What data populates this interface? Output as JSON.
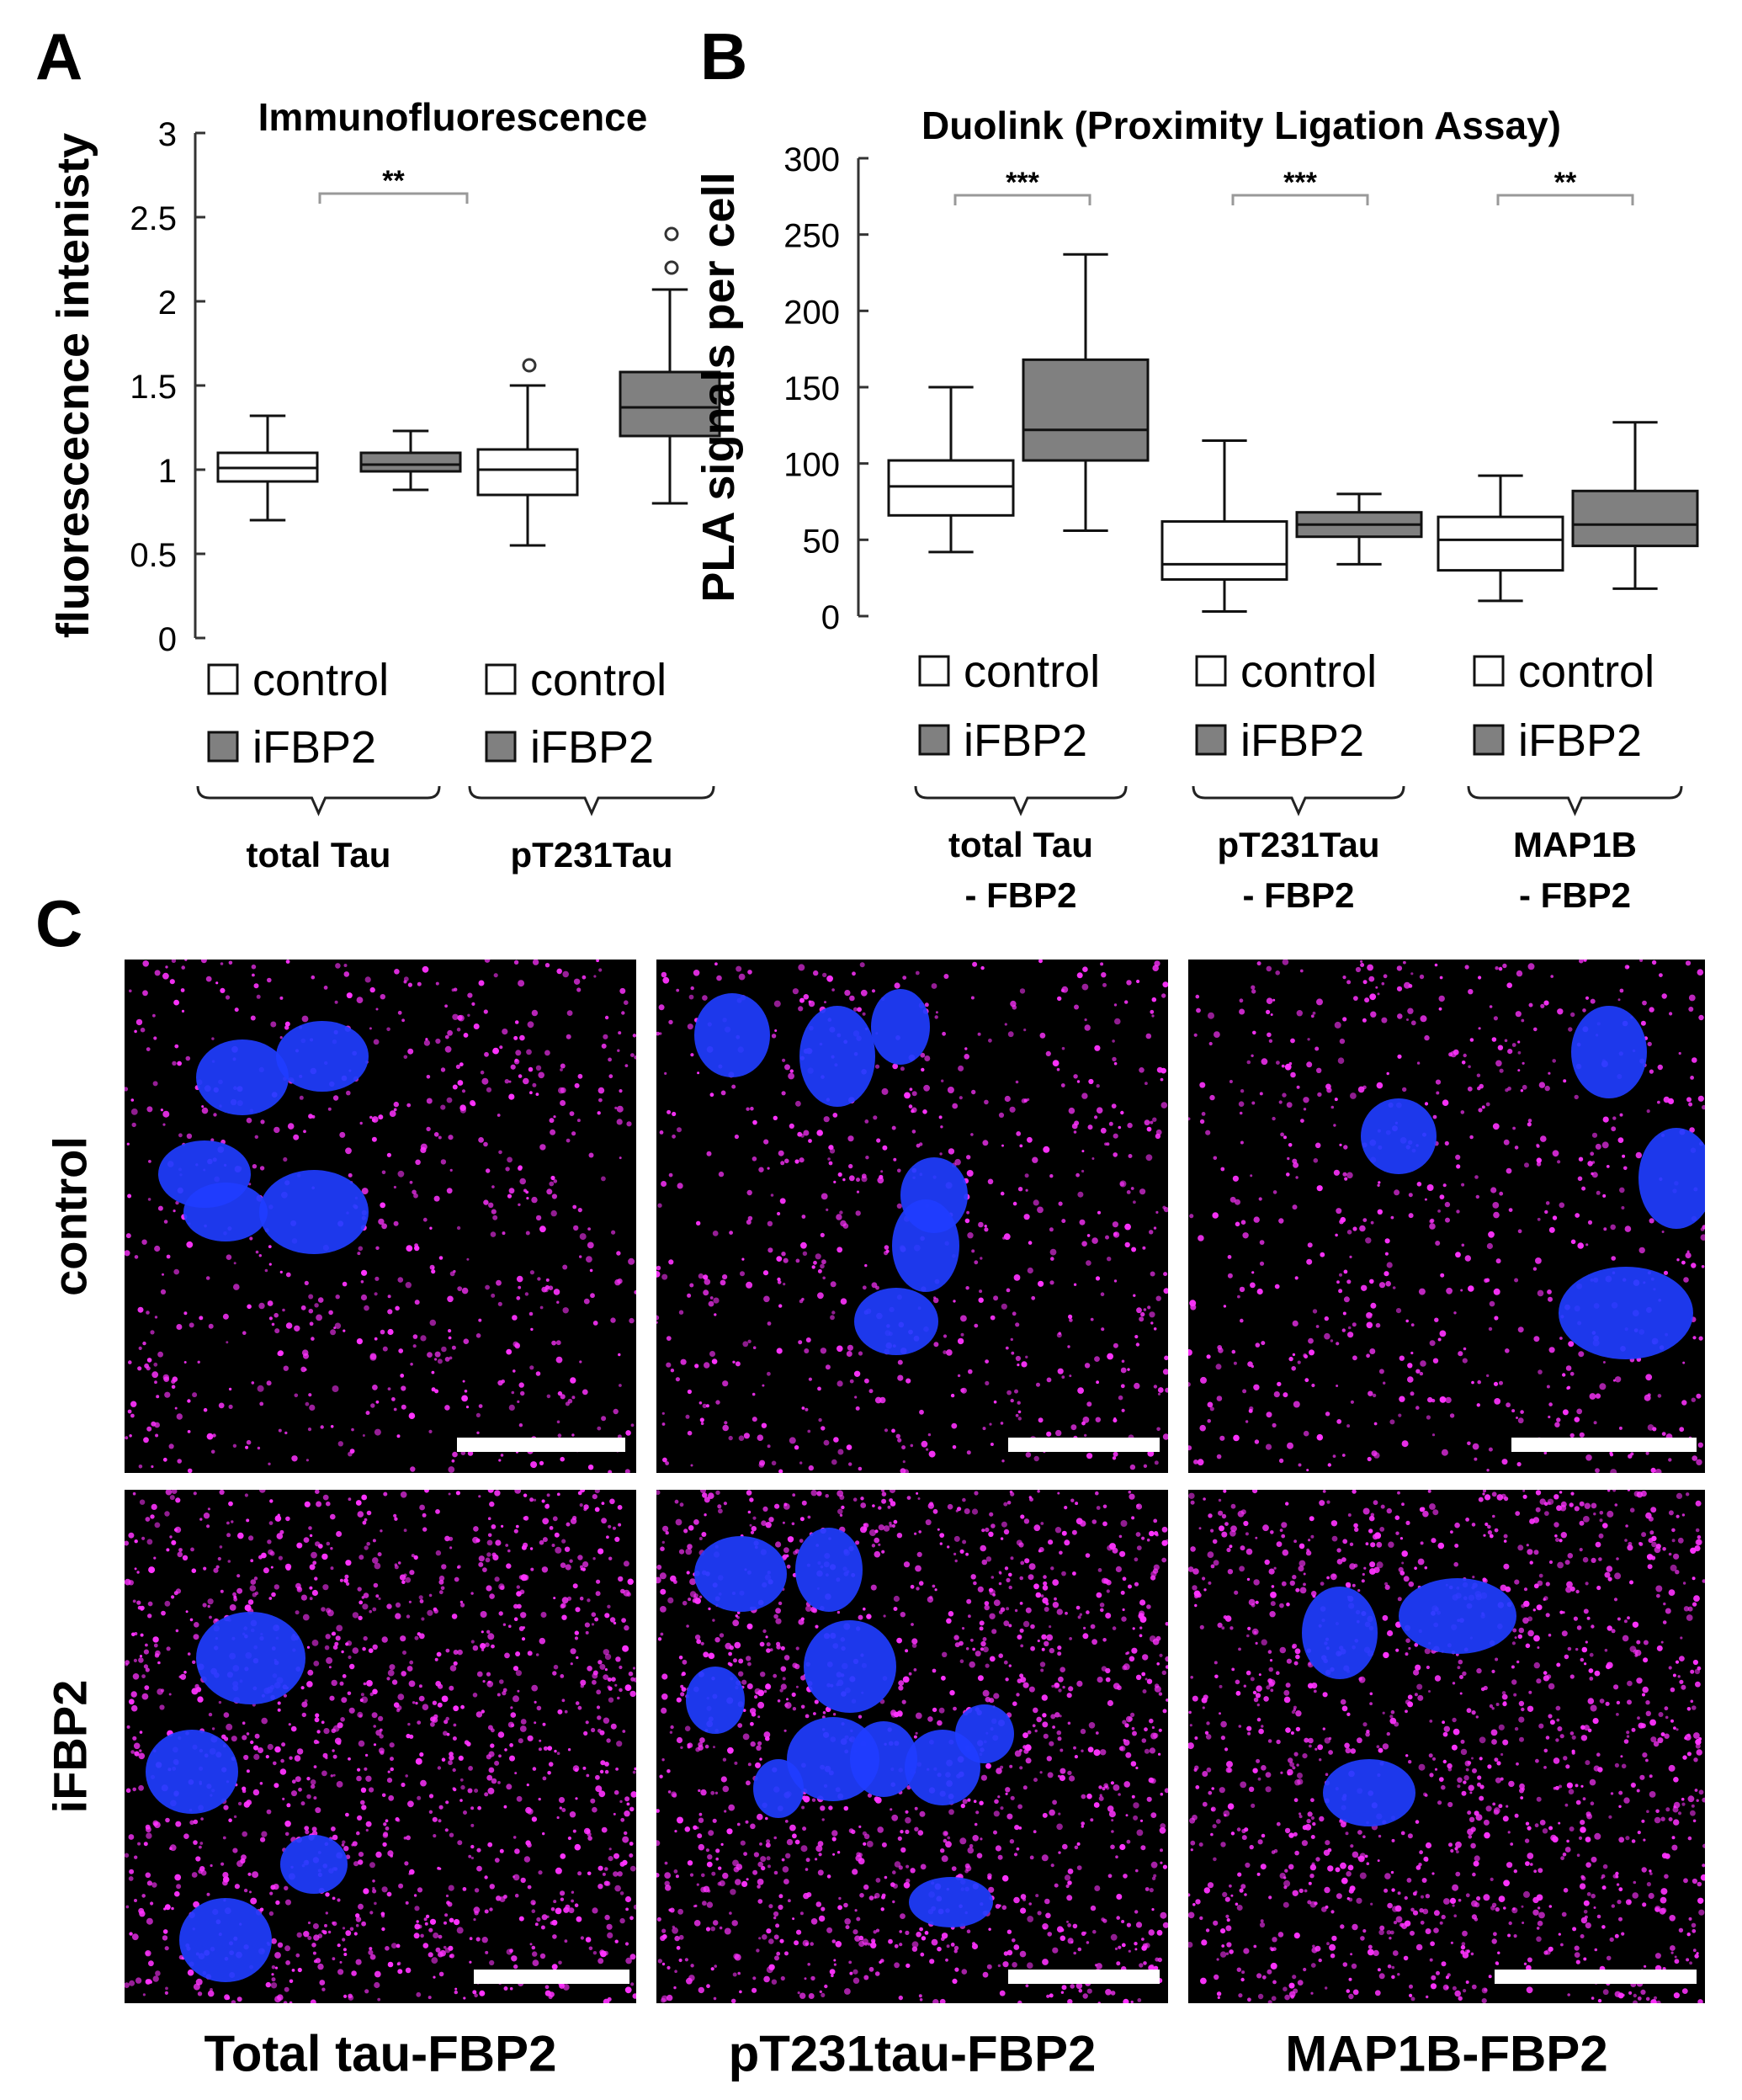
{
  "panels": {
    "a": {
      "letter": "A"
    },
    "b": {
      "letter": "B"
    },
    "c": {
      "letter": "C"
    }
  },
  "chart_data": [
    {
      "type": "box",
      "title": "Immunofluorescence",
      "ylabel": "fluorescecnce intenisty",
      "ylim": [
        0,
        3
      ],
      "yticks": [
        "0",
        "0.5",
        "1",
        "1.5",
        "2",
        "2.5",
        "3"
      ],
      "legend": [
        "control",
        "iFBP2"
      ],
      "groups": [
        {
          "label": "total Tau",
          "boxes": [
            {
              "series": "control",
              "min": 0.7,
              "q1": 0.93,
              "median": 1.01,
              "q3": 1.1,
              "max": 1.32
            },
            {
              "series": "iFBP2",
              "min": 0.88,
              "q1": 0.99,
              "median": 1.03,
              "q3": 1.1,
              "max": 1.23
            }
          ]
        },
        {
          "label": "pT231Tau",
          "significance": "**",
          "boxes": [
            {
              "series": "control",
              "min": 0.55,
              "q1": 0.85,
              "median": 1.0,
              "q3": 1.12,
              "max": 1.5,
              "outliers": [
                1.62
              ]
            },
            {
              "series": "iFBP2",
              "min": 0.8,
              "q1": 1.2,
              "median": 1.37,
              "q3": 1.58,
              "max": 2.07,
              "outliers": [
                2.2,
                2.4
              ]
            }
          ]
        }
      ]
    },
    {
      "type": "box",
      "title": "Duolink (Proximity Ligation Assay)",
      "ylabel": "PLA signals per cell",
      "ylim": [
        0,
        300
      ],
      "yticks": [
        "0",
        "50",
        "100",
        "150",
        "200",
        "250",
        "300"
      ],
      "legend": [
        "control",
        "iFBP2"
      ],
      "groups": [
        {
          "label_lines": [
            "total Tau",
            "- FBP2"
          ],
          "significance": "***",
          "boxes": [
            {
              "series": "control",
              "min": 42,
              "q1": 66,
              "median": 85,
              "q3": 102,
              "max": 150
            },
            {
              "series": "iFBP2",
              "min": 56,
              "q1": 102,
              "median": 122,
              "q3": 168,
              "max": 237
            }
          ]
        },
        {
          "label_lines": [
            "pT231Tau",
            "- FBP2"
          ],
          "significance": "***",
          "boxes": [
            {
              "series": "control",
              "min": 3,
              "q1": 24,
              "median": 34,
              "q3": 62,
              "max": 115
            },
            {
              "series": "iFBP2",
              "min": 34,
              "q1": 52,
              "median": 60,
              "q3": 68,
              "max": 80
            }
          ]
        },
        {
          "label_lines": [
            "MAP1B",
            "- FBP2"
          ],
          "significance": "**",
          "boxes": [
            {
              "series": "control",
              "min": 10,
              "q1": 30,
              "median": 50,
              "q3": 65,
              "max": 92
            },
            {
              "series": "iFBP2",
              "min": 18,
              "q1": 46,
              "median": 60,
              "q3": 82,
              "max": 127
            }
          ]
        }
      ]
    }
  ],
  "micrographs": {
    "rows": [
      "control",
      "iFBP2"
    ],
    "columns": [
      "Total tau-FBP2",
      "pT231tau-FBP2",
      "MAP1B-FBP2"
    ],
    "colors": {
      "signal": "#ff33ff",
      "nucleus": "#1f3dff",
      "background": "#000000",
      "scalebar": "#ffffff"
    }
  },
  "colors": {
    "control_fill": "#ffffff",
    "ifbp2_fill": "#808080",
    "stroke": "#111111",
    "bracket": "#999999"
  }
}
